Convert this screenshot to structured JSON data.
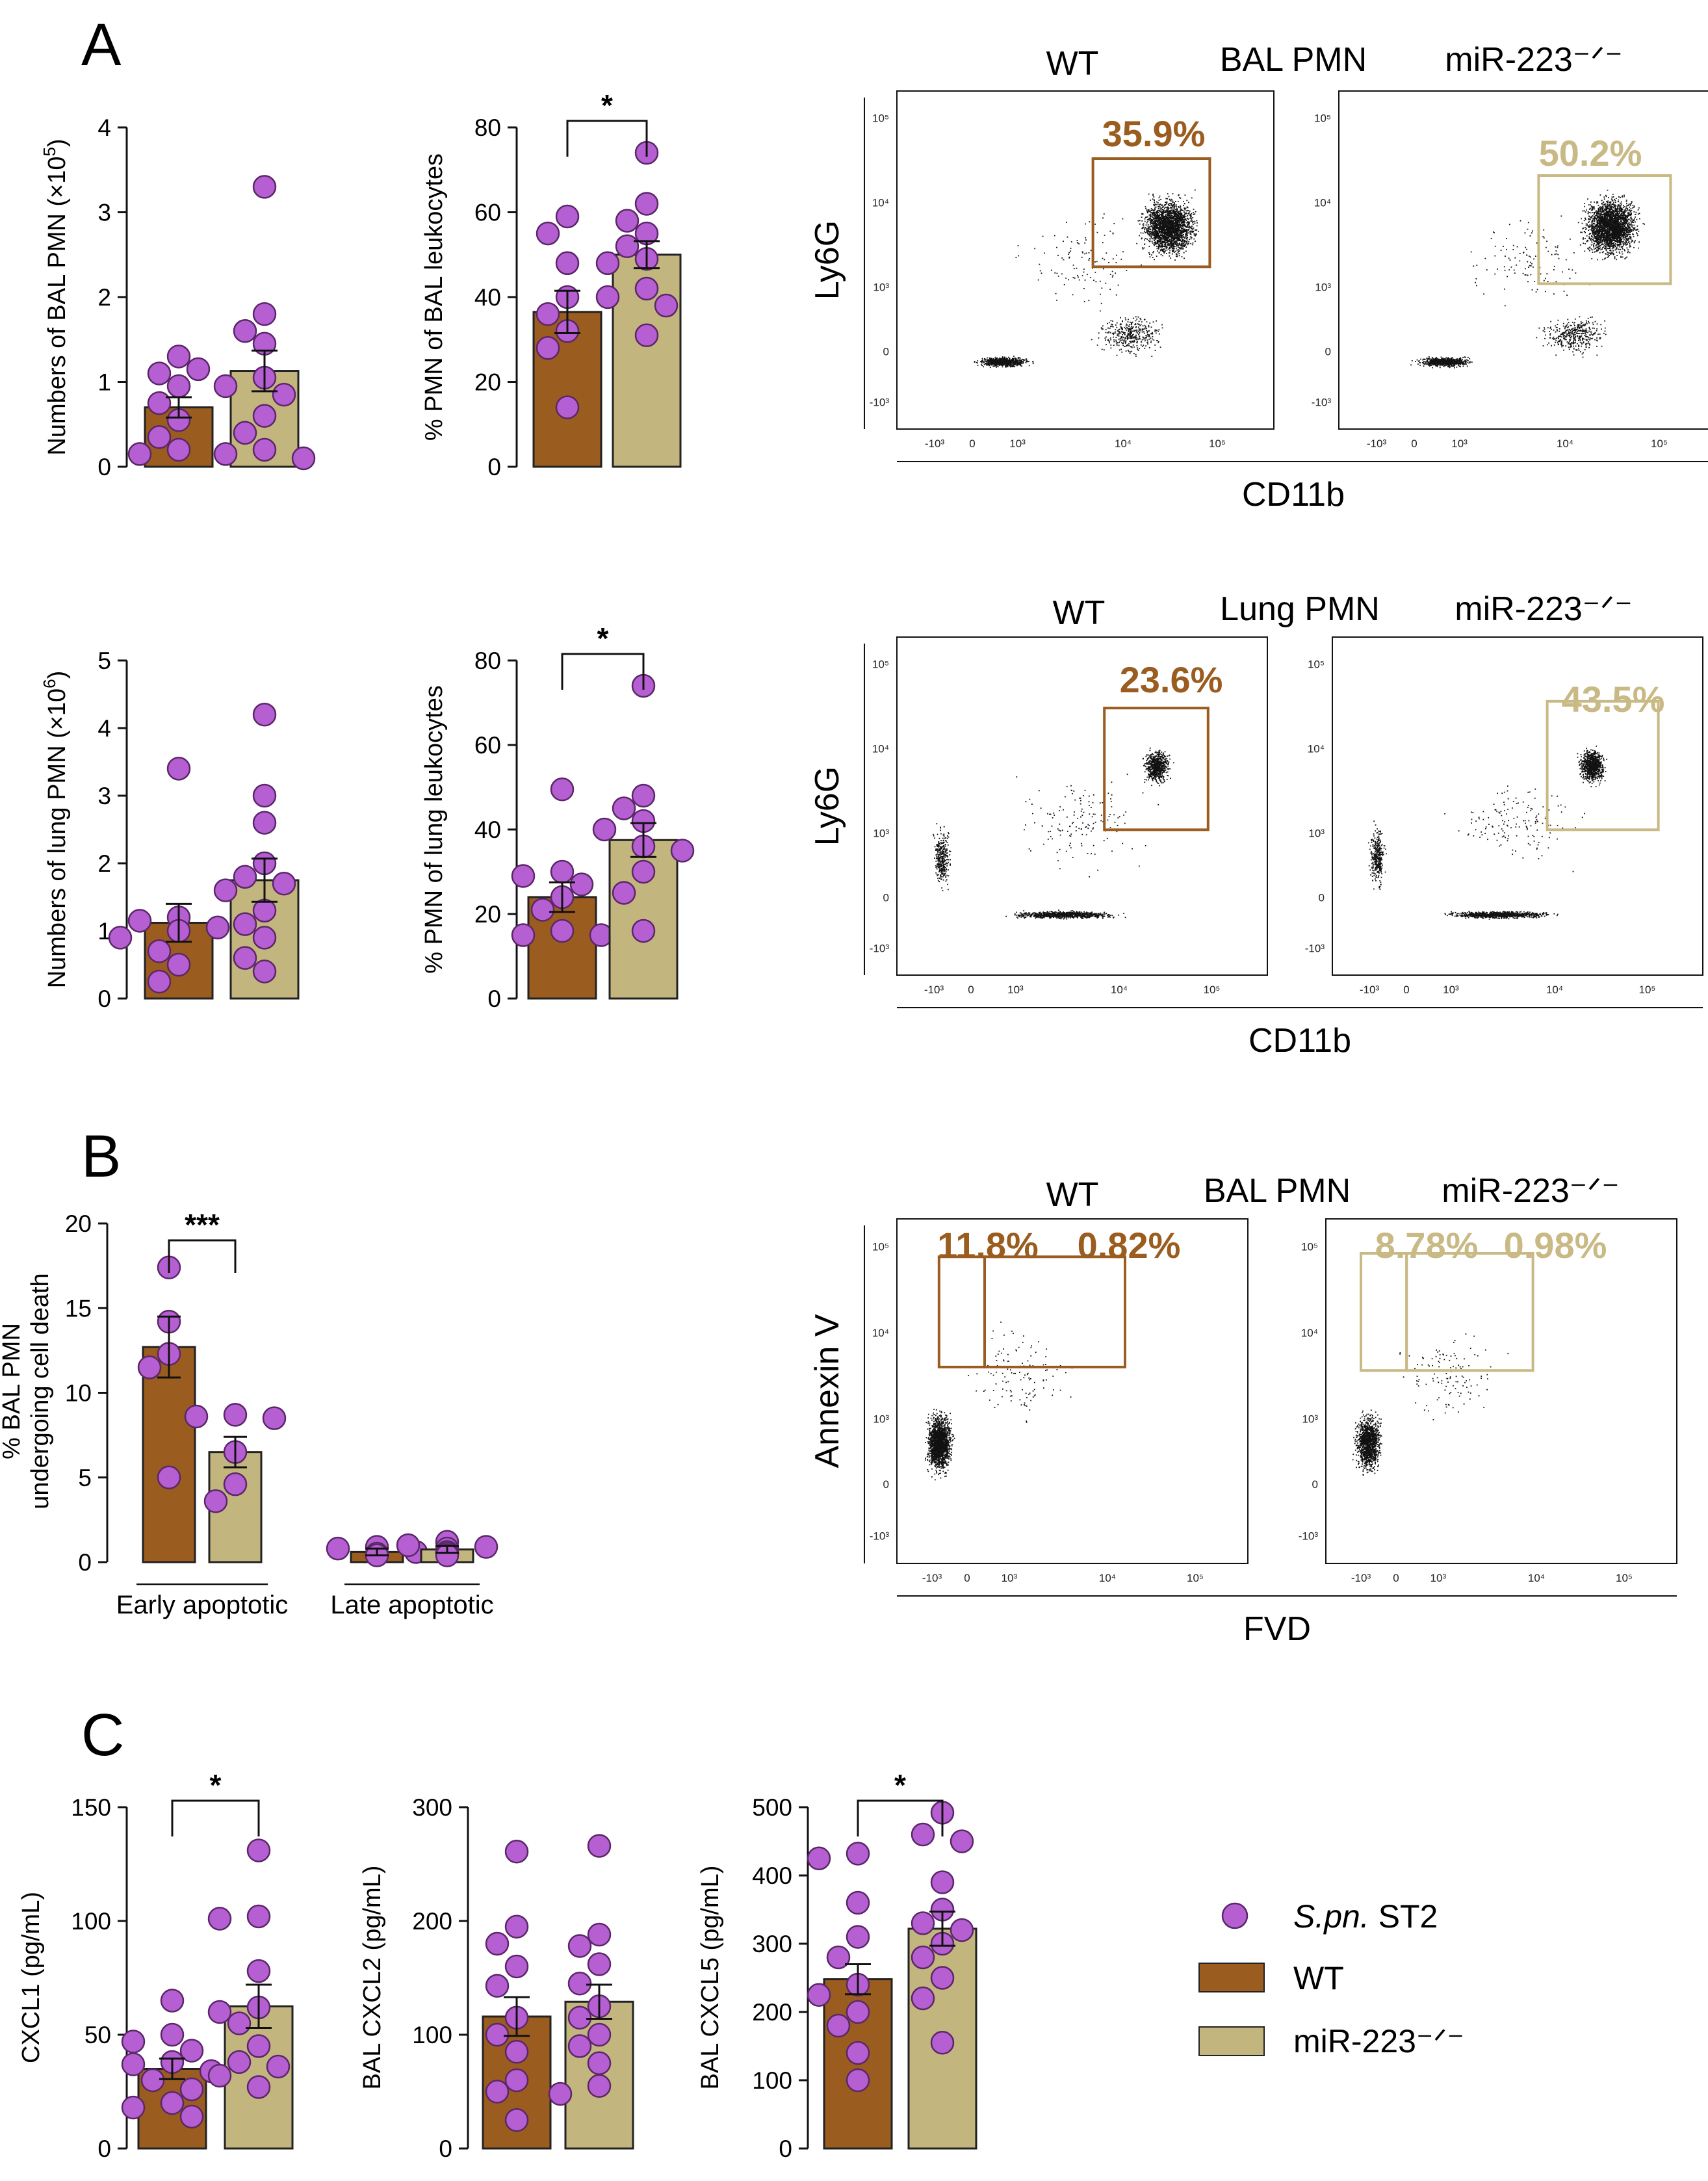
{
  "colors": {
    "wt": "#9a5c1f",
    "ko": "#c2b57d",
    "dot": "#b65fd2",
    "dot_stroke": "#5a2768",
    "gate_wt": "#9a5c1f",
    "gate_ko": "#c9b985"
  },
  "panels": {
    "a": "A",
    "b": "B",
    "c": "C"
  },
  "legend": {
    "marker_label_italic": "S.pn.",
    "marker_label_rest": " ST2",
    "wt": "WT",
    "ko": "miR-223⁻ᐟ⁻"
  },
  "chart_data": [
    {
      "id": "bal_numbers",
      "type": "bar",
      "ylabel_main": "Numbers of BAL PMN (×10",
      "ylabel_sup": "5",
      "ylabel_tail": ")",
      "ylim": [
        0,
        4
      ],
      "yticks": [
        0,
        1,
        2,
        3,
        4
      ],
      "categories": [
        "WT",
        "miR-223⁻ᐟ⁻"
      ],
      "values": [
        0.7,
        1.13
      ],
      "sem": [
        0.12,
        0.24
      ],
      "points": [
        [
          1.3,
          1.1,
          1.15,
          0.95,
          0.75,
          0.55,
          0.35,
          0.2,
          0.15
        ],
        [
          3.3,
          1.8,
          1.6,
          1.45,
          1.05,
          0.95,
          0.85,
          0.6,
          0.4,
          0.2,
          0.15,
          0.1
        ]
      ],
      "sig": ""
    },
    {
      "id": "bal_pct",
      "type": "bar",
      "ylabel_main": "% PMN of BAL leukocytes",
      "ylim": [
        0,
        80
      ],
      "yticks": [
        0,
        20,
        40,
        60,
        80
      ],
      "categories": [
        "WT",
        "miR-223⁻ᐟ⁻"
      ],
      "values": [
        36.5,
        50.0
      ],
      "sem": [
        5.0,
        3.2
      ],
      "points": [
        [
          59,
          55,
          48,
          40,
          36,
          32,
          28,
          14
        ],
        [
          74,
          62,
          58,
          55,
          52,
          49,
          48,
          42,
          40,
          38,
          31
        ]
      ],
      "sig": "*"
    },
    {
      "id": "lung_numbers",
      "type": "bar",
      "ylabel_main": "Numbers of lung PMN (×10",
      "ylabel_sup": "6",
      "ylabel_tail": ")",
      "ylim": [
        0,
        5
      ],
      "yticks": [
        0,
        1,
        2,
        3,
        4,
        5
      ],
      "categories": [
        "WT",
        "miR-223⁻ᐟ⁻"
      ],
      "values": [
        1.12,
        1.75
      ],
      "sem": [
        0.28,
        0.32
      ],
      "points": [
        [
          3.4,
          1.2,
          1.15,
          1.05,
          1.0,
          0.9,
          0.7,
          0.5,
          0.25
        ],
        [
          4.2,
          3.0,
          2.6,
          2.0,
          1.8,
          1.7,
          1.6,
          1.3,
          1.1,
          0.9,
          0.6,
          0.4
        ]
      ],
      "sig": ""
    },
    {
      "id": "lung_pct",
      "type": "bar",
      "ylabel_main": "% PMN of lung leukocytes",
      "ylim": [
        0,
        80
      ],
      "yticks": [
        0,
        20,
        40,
        60,
        80
      ],
      "categories": [
        "WT",
        "miR-223⁻ᐟ⁻"
      ],
      "values": [
        24.0,
        37.5
      ],
      "sem": [
        3.5,
        4.0
      ],
      "points": [
        [
          49.5,
          30,
          29,
          27,
          24,
          21,
          16,
          15,
          15
        ],
        [
          74,
          48,
          45,
          42,
          40,
          36,
          35,
          30,
          25,
          16
        ]
      ],
      "sig": "*"
    },
    {
      "id": "apoptosis",
      "type": "bar",
      "ylabel_main": "% BAL PMN",
      "ylabel_line2": "undergoing cell death",
      "ylim": [
        0,
        20
      ],
      "yticks": [
        0,
        5,
        10,
        15,
        20
      ],
      "categories": [
        "Early apoptotic",
        "Late apoptotic"
      ],
      "series": [
        {
          "name": "WT",
          "values": [
            12.7,
            0.6
          ],
          "sem": [
            1.8,
            0.2
          ]
        },
        {
          "name": "miR-223⁻ᐟ⁻",
          "values": [
            6.5,
            0.75
          ],
          "sem": [
            0.9,
            0.2
          ]
        }
      ],
      "points": [
        [
          [
            17.4,
            14.2,
            12.3,
            11.5,
            5.0
          ],
          [
            0.9,
            0.8,
            0.6,
            0.5,
            0.4
          ]
        ],
        [
          [
            8.7,
            8.6,
            8.5,
            6.5,
            4.6,
            3.6
          ],
          [
            1.2,
            1.0,
            0.9,
            0.8,
            0.6,
            0.5,
            0.4
          ]
        ]
      ],
      "sig": "***"
    },
    {
      "id": "cxcl1",
      "type": "bar",
      "ylabel_main": "CXCL1 (pg/mL)",
      "ylim": [
        0,
        150
      ],
      "yticks": [
        0,
        50,
        100,
        150
      ],
      "categories": [
        "WT",
        "miR-223⁻ᐟ⁻"
      ],
      "values": [
        35.0,
        62.5
      ],
      "sem": [
        4.5,
        9.5
      ],
      "points": [
        [
          65,
          50,
          47,
          43,
          38,
          37,
          34,
          30,
          26,
          20,
          18,
          14
        ],
        [
          131,
          102,
          101,
          78,
          62,
          60,
          55,
          45,
          38,
          36,
          32,
          27
        ]
      ],
      "sig": "*"
    },
    {
      "id": "cxcl2",
      "type": "bar",
      "ylabel_main": "BAL CXCL2 (pg/mL)",
      "ylim": [
        0,
        300
      ],
      "yticks": [
        0,
        100,
        200,
        300
      ],
      "categories": [
        "WT",
        "miR-223⁻ᐟ⁻"
      ],
      "values": [
        116,
        129
      ],
      "sem": [
        17,
        15
      ],
      "points": [
        [
          261,
          195,
          180,
          160,
          143,
          115,
          100,
          85,
          60,
          50,
          25
        ],
        [
          266,
          188,
          178,
          162,
          145,
          125,
          115,
          100,
          90,
          75,
          55,
          48
        ]
      ],
      "sig": ""
    },
    {
      "id": "cxcl5",
      "type": "bar",
      "ylabel_main": "BAL CXCL5 (pg/mL)",
      "ylim": [
        0,
        500
      ],
      "yticks": [
        0,
        100,
        200,
        300,
        400,
        500
      ],
      "categories": [
        "WT",
        "miR-223⁻ᐟ⁻"
      ],
      "values": [
        248,
        322
      ],
      "sem": [
        22,
        25
      ],
      "points": [
        [
          432,
          425,
          360,
          310,
          280,
          240,
          225,
          200,
          180,
          140,
          100
        ],
        [
          492,
          460,
          450,
          390,
          350,
          330,
          320,
          300,
          280,
          250,
          220,
          155
        ]
      ],
      "sig": "*"
    }
  ],
  "flow": {
    "ticks_x": [
      "-10³",
      "0",
      "10³",
      "10⁴",
      "10⁵"
    ],
    "ticks_y": [
      "10⁵",
      "10⁴",
      "10³",
      "0",
      "-10³"
    ],
    "bal": {
      "title": "BAL PMN",
      "wt": "WT",
      "ko": "miR-223⁻ᐟ⁻",
      "ylabel": "Ly6G",
      "xlabel": "CD11b",
      "pct_wt": "35.9%",
      "pct_ko": "50.2%"
    },
    "lung": {
      "title": "Lung PMN",
      "wt": "WT",
      "ko": "miR-223⁻ᐟ⁻",
      "ylabel": "Ly6G",
      "xlabel": "CD11b",
      "pct_wt": "23.6%",
      "pct_ko": "43.5%"
    },
    "apop": {
      "title": "BAL PMN",
      "wt": "WT",
      "ko": "miR-223⁻ᐟ⁻",
      "ylabel": "Annexin V",
      "xlabel": "FVD",
      "pct_wt_early": "11.8%",
      "pct_wt_late": "0.82%",
      "pct_ko_early": "8.78%",
      "pct_ko_late": "0.98%"
    }
  }
}
